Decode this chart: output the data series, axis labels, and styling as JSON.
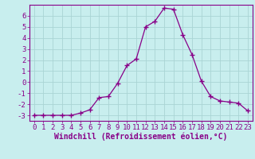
{
  "x": [
    0,
    1,
    2,
    3,
    4,
    5,
    6,
    7,
    8,
    9,
    10,
    11,
    12,
    13,
    14,
    15,
    16,
    17,
    18,
    19,
    20,
    21,
    22,
    23
  ],
  "y": [
    -3.0,
    -3.0,
    -3.0,
    -3.0,
    -3.0,
    -2.8,
    -2.5,
    -1.4,
    -1.3,
    -0.1,
    1.5,
    2.1,
    5.0,
    5.5,
    6.7,
    6.6,
    4.3,
    2.5,
    0.1,
    -1.3,
    -1.7,
    -1.8,
    -1.9,
    -2.6
  ],
  "line_color": "#880088",
  "marker_color": "#880088",
  "bg_color": "#c8eeee",
  "grid_color": "#aad4d4",
  "axis_color": "#880088",
  "xlabel": "Windchill (Refroidissement éolien,°C)",
  "xlim": [
    -0.5,
    23.5
  ],
  "ylim": [
    -3.5,
    7.0
  ],
  "xticks": [
    0,
    1,
    2,
    3,
    4,
    5,
    6,
    7,
    8,
    9,
    10,
    11,
    12,
    13,
    14,
    15,
    16,
    17,
    18,
    19,
    20,
    21,
    22,
    23
  ],
  "yticks": [
    -3,
    -2,
    -1,
    0,
    1,
    2,
    3,
    4,
    5,
    6
  ],
  "font_size": 6.5,
  "xlabel_font_size": 7.0
}
